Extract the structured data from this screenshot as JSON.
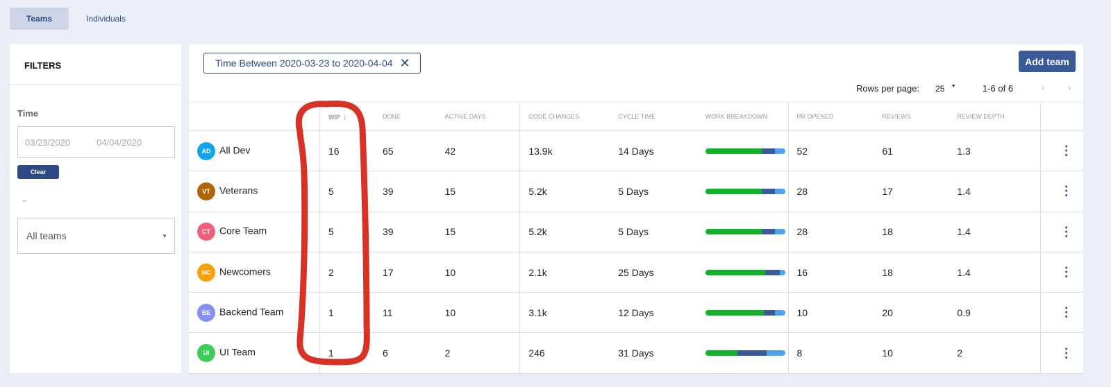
{
  "tabs": [
    {
      "label": "Teams",
      "active": true
    },
    {
      "label": "Individuals",
      "active": false
    }
  ],
  "filters": {
    "title": "FILTERS",
    "time_label": "Time",
    "start_date": "03/23/2020",
    "end_date": "04/04/2020",
    "clear_label": "Clear",
    "team_select": "All teams"
  },
  "chip": {
    "label": "Time Between 2020-03-23 to 2020-04-04"
  },
  "add_team_label": "Add team",
  "pagination": {
    "rows_label": "Rows per page:",
    "rows_value": "25",
    "range": "1-6 of 6"
  },
  "columns": [
    "",
    "WIP",
    "DONE",
    "ACTIVE DAYS",
    "CODE CHANGES",
    "CYCLE TIME",
    "WORK BREAKDOWN",
    "PR OPENED",
    "REVIEWS",
    "REVIEW DEPTH",
    ""
  ],
  "colors": {
    "green": "#12b32a",
    "dark_blue": "#3a5a98",
    "light_blue": "#4da3ef",
    "annotation": "#d63225"
  },
  "rows": [
    {
      "initials": "AD",
      "color": "#12a4ec",
      "name": "All Dev",
      "wip": "16",
      "done": "65",
      "active": "42",
      "code": "13.9k",
      "cycle": "14 Days",
      "breakdown": [
        71,
        16,
        13
      ],
      "pr": "52",
      "reviews": "61",
      "depth": "1.3"
    },
    {
      "initials": "VT",
      "color": "#b0650a",
      "name": "Veterans",
      "wip": "5",
      "done": "39",
      "active": "15",
      "code": "5.2k",
      "cycle": "5 Days",
      "breakdown": [
        71,
        16,
        13
      ],
      "pr": "28",
      "reviews": "17",
      "depth": "1.4"
    },
    {
      "initials": "CT",
      "color": "#f0607a",
      "name": "Core Team",
      "wip": "5",
      "done": "39",
      "active": "15",
      "code": "5.2k",
      "cycle": "5 Days",
      "breakdown": [
        71,
        16,
        13
      ],
      "pr": "28",
      "reviews": "18",
      "depth": "1.4"
    },
    {
      "initials": "NC",
      "color": "#f6a10a",
      "name": "Newcomers",
      "wip": "2",
      "done": "17",
      "active": "10",
      "code": "2.1k",
      "cycle": "25 Days",
      "breakdown": [
        75,
        18,
        7
      ],
      "pr": "16",
      "reviews": "18",
      "depth": "1.4"
    },
    {
      "initials": "BE",
      "color": "#8591ef",
      "name": "Backend Team",
      "wip": "1",
      "done": "11",
      "active": "10",
      "code": "3.1k",
      "cycle": "12 Days",
      "breakdown": [
        73,
        14,
        13
      ],
      "pr": "10",
      "reviews": "20",
      "depth": "0.9"
    },
    {
      "initials": "UI",
      "color": "#3fcb5a",
      "name": "UI Team",
      "wip": "1",
      "done": "6",
      "active": "2",
      "code": "246",
      "cycle": "31 Days",
      "breakdown": [
        40,
        37,
        23
      ],
      "pr": "8",
      "reviews": "10",
      "depth": "2"
    }
  ]
}
